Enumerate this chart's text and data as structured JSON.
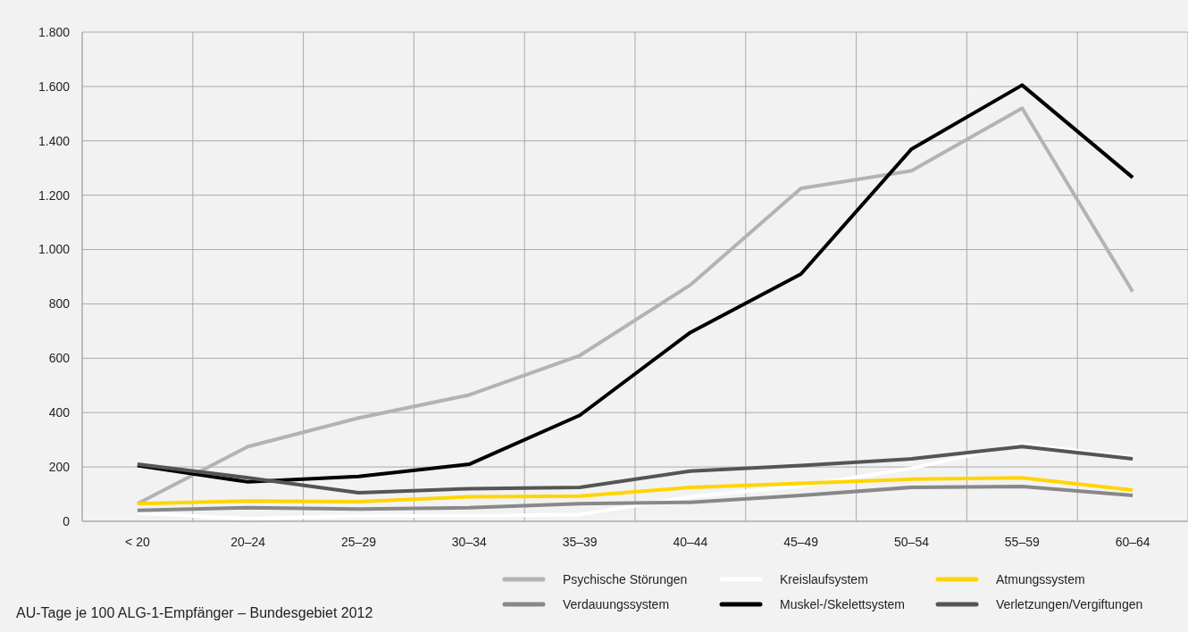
{
  "chart_data": {
    "type": "line",
    "categories": [
      "< 20",
      "20–24",
      "25–29",
      "30–34",
      "35–39",
      "40–44",
      "45–49",
      "50–54",
      "55–59",
      "60–64"
    ],
    "series": [
      {
        "name": "Psychische Störungen",
        "color": "#b3b3b3",
        "values": [
          65,
          275,
          380,
          465,
          610,
          870,
          1225,
          1290,
          1520,
          845
        ]
      },
      {
        "name": "Kreislaufsystem",
        "color": "#ffffff",
        "values": [
          30,
          10,
          20,
          20,
          25,
          90,
          130,
          195,
          285,
          235
        ]
      },
      {
        "name": "Atmungssystem",
        "color": "#ffd500",
        "values": [
          65,
          75,
          72,
          90,
          93,
          125,
          140,
          155,
          160,
          115
        ]
      },
      {
        "name": "Verdauungssystem",
        "color": "#888888",
        "values": [
          40,
          50,
          45,
          50,
          65,
          70,
          95,
          125,
          128,
          95
        ]
      },
      {
        "name": "Muskel-/Skelettsystem",
        "color": "#000000",
        "values": [
          205,
          145,
          165,
          210,
          390,
          695,
          910,
          1370,
          1605,
          1265
        ]
      },
      {
        "name": "Verletzungen/Vergiftungen",
        "color": "#555555",
        "values": [
          210,
          160,
          105,
          120,
          125,
          185,
          205,
          230,
          275,
          230
        ]
      }
    ],
    "ylim": [
      0,
      1800
    ],
    "yticks": [
      {
        "value": 0,
        "label": "0"
      },
      {
        "value": 200,
        "label": "200"
      },
      {
        "value": 400,
        "label": "400"
      },
      {
        "value": 600,
        "label": "600"
      },
      {
        "value": 800,
        "label": "800"
      },
      {
        "value": 1000,
        "label": "1.000"
      },
      {
        "value": 1200,
        "label": "1.200"
      },
      {
        "value": 1400,
        "label": "1.400"
      },
      {
        "value": 1600,
        "label": "1.600"
      },
      {
        "value": 1800,
        "label": "1.800"
      }
    ],
    "grid": true,
    "legend": "bottom right",
    "marker": "none",
    "line_style": "solid",
    "annotations": [
      "AU-Tage je 100 ALG-1-Empfänger – Bundesgebiet 2012"
    ]
  }
}
